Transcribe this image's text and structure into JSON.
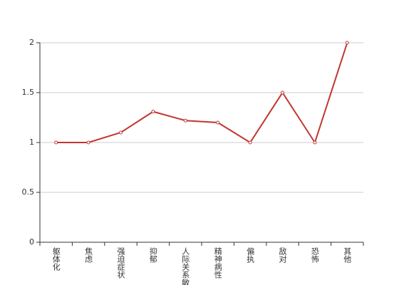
{
  "chart_data": {
    "type": "line",
    "categories": [
      "躯体化",
      "焦虑",
      "强迫症状",
      "抑郁",
      "人际关系敏感",
      "精神病性",
      "偏执",
      "敌对",
      "恐怖",
      "其他"
    ],
    "values": [
      1,
      1,
      1.1,
      1.31,
      1.22,
      1.2,
      1,
      1.5,
      1,
      2
    ],
    "color": "#c23531",
    "ylim": [
      0,
      2
    ],
    "yticks": [
      0,
      0.5,
      1,
      1.5,
      2
    ],
    "grid": true
  }
}
